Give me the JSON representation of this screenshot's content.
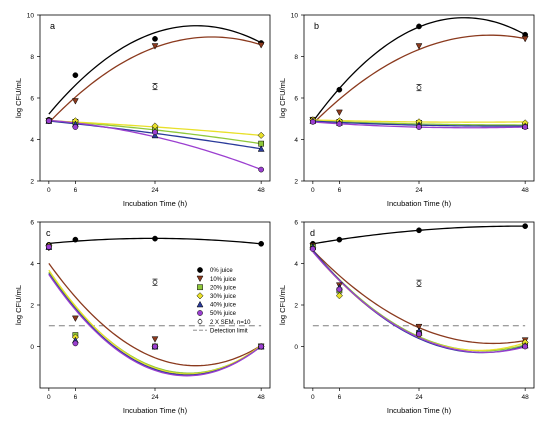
{
  "colors": {
    "juice_0": "#000000",
    "juice_10": "#8b3a1e",
    "juice_20": "#8fc83a",
    "juice_30": "#e8e02a",
    "juice_40": "#2a3a9a",
    "juice_50": "#9b3fd0",
    "detection": "#7f7f7f"
  },
  "legend": [
    {
      "label": "0% juice",
      "marker": "circle",
      "color_key": "juice_0"
    },
    {
      "label": "10% juice",
      "marker": "triangle-down",
      "color_key": "juice_10"
    },
    {
      "label": "20% juice",
      "marker": "square",
      "color_key": "juice_20"
    },
    {
      "label": "30% juice",
      "marker": "diamond",
      "color_key": "juice_30"
    },
    {
      "label": "40% juice",
      "marker": "triangle-up",
      "color_key": "juice_40"
    },
    {
      "label": "50% juice",
      "marker": "circle",
      "color_key": "juice_50"
    },
    {
      "label": "2 X SEM, n=10",
      "marker": "errorbar",
      "color_key": "juice_0"
    },
    {
      "label": "Detection limit",
      "marker": "dash",
      "color_key": "detection"
    }
  ],
  "chart_data": [
    {
      "type": "scatter",
      "panel": "a",
      "xlabel": "Incubation Time (h)",
      "ylabel": "log CFU/mL",
      "xlim": [
        -2,
        50
      ],
      "ylim": [
        2,
        10
      ],
      "xticks": [
        0,
        6,
        24,
        48
      ],
      "yticks": [
        2,
        4,
        6,
        8,
        10
      ],
      "x": [
        0,
        6,
        24,
        48
      ],
      "sem_marker": {
        "x": 24,
        "y": 6.55,
        "halfwidth": 0.15
      },
      "series": [
        {
          "color_key": "juice_0",
          "marker": "circle",
          "values": [
            4.95,
            7.1,
            8.85,
            8.65
          ],
          "fit": [
            5.3,
            6.5,
            9.2,
            8.65
          ]
        },
        {
          "color_key": "juice_10",
          "marker": "triangle-down",
          "values": [
            4.9,
            5.85,
            8.5,
            8.55
          ],
          "fit": [
            4.9,
            5.9,
            8.5,
            8.55
          ]
        },
        {
          "color_key": "juice_20",
          "marker": "square",
          "values": [
            4.9,
            4.85,
            4.45,
            3.8
          ],
          "fit": [
            4.9,
            4.85,
            4.45,
            3.8
          ]
        },
        {
          "color_key": "juice_30",
          "marker": "diamond",
          "values": [
            4.9,
            4.9,
            4.65,
            4.2
          ],
          "fit": [
            4.9,
            4.85,
            4.6,
            4.2
          ]
        },
        {
          "color_key": "juice_40",
          "marker": "triangle-up",
          "values": [
            4.9,
            4.75,
            4.2,
            3.55
          ],
          "fit": [
            4.9,
            4.75,
            4.3,
            3.55
          ]
        },
        {
          "color_key": "juice_50",
          "marker": "circle",
          "values": [
            4.9,
            4.6,
            4.35,
            2.55
          ],
          "fit": [
            4.95,
            4.75,
            4.15,
            2.55
          ]
        }
      ]
    },
    {
      "type": "scatter",
      "panel": "b",
      "xlabel": "Incubation Time (h)",
      "ylabel": "log CFU/mL",
      "xlim": [
        -2,
        50
      ],
      "ylim": [
        2,
        10
      ],
      "xticks": [
        0,
        6,
        24,
        48
      ],
      "yticks": [
        2,
        4,
        6,
        8,
        10
      ],
      "x": [
        0,
        6,
        24,
        48
      ],
      "sem_marker": {
        "x": 24,
        "y": 6.5,
        "halfwidth": 0.15
      },
      "series": [
        {
          "color_key": "juice_0",
          "marker": "circle",
          "values": [
            4.9,
            6.4,
            9.45,
            9.05
          ],
          "fit": [
            4.9,
            6.4,
            9.45,
            9.05
          ]
        },
        {
          "color_key": "juice_10",
          "marker": "triangle-down",
          "values": [
            4.95,
            5.3,
            8.5,
            8.85
          ],
          "fit": [
            4.85,
            5.8,
            8.4,
            8.85
          ]
        },
        {
          "color_key": "juice_20",
          "marker": "square",
          "values": [
            4.9,
            4.85,
            4.8,
            4.65
          ],
          "fit": [
            4.9,
            4.85,
            4.75,
            4.7
          ]
        },
        {
          "color_key": "juice_30",
          "marker": "diamond",
          "values": [
            4.95,
            4.9,
            4.85,
            4.8
          ],
          "fit": [
            4.95,
            4.9,
            4.85,
            4.85
          ]
        },
        {
          "color_key": "juice_40",
          "marker": "triangle-up",
          "values": [
            4.9,
            4.8,
            4.7,
            4.65
          ],
          "fit": [
            4.9,
            4.8,
            4.7,
            4.65
          ]
        },
        {
          "color_key": "juice_50",
          "marker": "circle",
          "values": [
            4.85,
            4.75,
            4.6,
            4.6
          ],
          "fit": [
            4.85,
            4.75,
            4.6,
            4.6
          ]
        }
      ]
    },
    {
      "type": "scatter",
      "panel": "c",
      "xlabel": "Incubation Time (h)",
      "ylabel": "log CFU/mL",
      "xlim": [
        -2,
        50
      ],
      "ylim": [
        -2,
        6
      ],
      "xticks": [
        0,
        6,
        24,
        48
      ],
      "yticks": [
        0,
        2,
        4,
        6
      ],
      "x": [
        0,
        6,
        24,
        48
      ],
      "detection_limit": 1.0,
      "sem_marker": {
        "x": 24,
        "y": 3.1,
        "halfwidth": 0.15
      },
      "series": [
        {
          "color_key": "juice_0",
          "marker": "circle",
          "values": [
            4.9,
            5.15,
            5.2,
            4.95
          ],
          "fit": [
            4.95,
            5.1,
            5.2,
            4.95
          ]
        },
        {
          "color_key": "juice_10",
          "marker": "triangle-down",
          "values": [
            4.75,
            1.35,
            0.35,
            0.0
          ],
          "fit": [
            4.0,
            2.4,
            -0.55,
            0.05
          ]
        },
        {
          "color_key": "juice_20",
          "marker": "square",
          "values": [
            4.8,
            0.55,
            0.0,
            0.0
          ],
          "fit": [
            3.65,
            1.8,
            -0.95,
            0.0
          ]
        },
        {
          "color_key": "juice_30",
          "marker": "diamond",
          "values": [
            4.85,
            0.45,
            0.0,
            0.0
          ],
          "fit": [
            3.75,
            1.85,
            -1.0,
            0.05
          ]
        },
        {
          "color_key": "juice_40",
          "marker": "triangle-up",
          "values": [
            4.8,
            0.3,
            0.0,
            0.0
          ],
          "fit": [
            3.6,
            1.7,
            -1.05,
            0.0
          ]
        },
        {
          "color_key": "juice_50",
          "marker": "circle",
          "values": [
            4.8,
            0.15,
            0.0,
            0.0
          ],
          "fit": [
            3.55,
            1.65,
            -1.1,
            0.0
          ]
        }
      ]
    },
    {
      "type": "scatter",
      "panel": "d",
      "xlabel": "Incubation Time (h)",
      "ylabel": "log CFU/mL",
      "xlim": [
        -2,
        50
      ],
      "ylim": [
        -2,
        6
      ],
      "xticks": [
        0,
        6,
        24,
        48
      ],
      "yticks": [
        0,
        2,
        4,
        6
      ],
      "x": [
        0,
        6,
        24,
        48
      ],
      "detection_limit": 1.0,
      "sem_marker": {
        "x": 24,
        "y": 3.05,
        "halfwidth": 0.15
      },
      "series": [
        {
          "color_key": "juice_0",
          "marker": "circle",
          "values": [
            4.95,
            5.15,
            5.6,
            5.8
          ],
          "fit": [
            4.95,
            5.15,
            5.6,
            5.8
          ]
        },
        {
          "color_key": "juice_10",
          "marker": "triangle-down",
          "values": [
            4.85,
            2.95,
            0.95,
            0.3
          ],
          "fit": [
            4.55,
            3.55,
            0.85,
            0.3
          ]
        },
        {
          "color_key": "juice_20",
          "marker": "square",
          "values": [
            4.8,
            2.7,
            0.65,
            0.1
          ],
          "fit": [
            4.5,
            3.4,
            0.4,
            0.1
          ]
        },
        {
          "color_key": "juice_30",
          "marker": "diamond",
          "values": [
            4.75,
            2.45,
            0.55,
            0.2
          ],
          "fit": [
            4.45,
            3.35,
            0.35,
            0.2
          ]
        },
        {
          "color_key": "juice_40",
          "marker": "triangle-up",
          "values": [
            4.8,
            2.85,
            0.75,
            0.05
          ],
          "fit": [
            4.5,
            3.4,
            0.3,
            0.05
          ]
        },
        {
          "color_key": "juice_50",
          "marker": "circle",
          "values": [
            4.7,
            2.75,
            0.6,
            0.0
          ],
          "fit": [
            4.45,
            3.35,
            0.35,
            0.0
          ]
        }
      ]
    }
  ]
}
